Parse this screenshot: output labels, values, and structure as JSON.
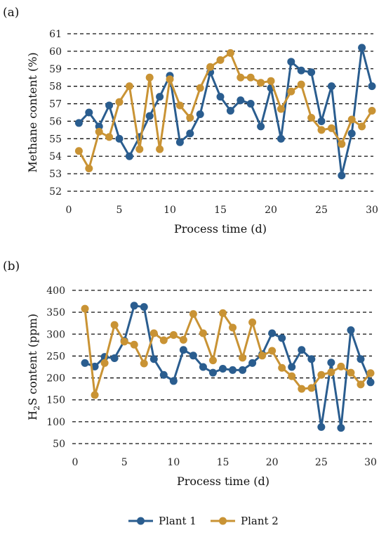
{
  "chart_data": [
    {
      "panel": "(a)",
      "type": "line",
      "xlabel": "Process time (d)",
      "ylabel": "Methane content (%)",
      "xlim": [
        0,
        30
      ],
      "ylim": [
        52,
        61
      ],
      "xticks": [
        0,
        5,
        10,
        15,
        20,
        25,
        30
      ],
      "yticks": [
        52,
        53,
        54,
        55,
        56,
        57,
        58,
        59,
        60,
        61
      ],
      "grid": "horizontal dashed",
      "x": [
        1,
        2,
        3,
        4,
        5,
        6,
        7,
        8,
        9,
        10,
        11,
        12,
        13,
        14,
        15,
        16,
        17,
        18,
        19,
        20,
        21,
        22,
        23,
        24,
        25,
        26,
        27,
        28,
        29,
        30
      ],
      "series": [
        {
          "name": "Plant 1",
          "color": "#2a5d8f",
          "values": [
            55.9,
            56.5,
            55.7,
            56.9,
            55.0,
            54.0,
            55.1,
            56.3,
            57.4,
            58.6,
            54.8,
            55.3,
            56.4,
            58.8,
            57.4,
            56.6,
            57.2,
            57.0,
            55.7,
            57.9,
            55.0,
            59.4,
            58.9,
            58.8,
            56.0,
            58.0,
            52.9,
            55.3,
            60.2,
            58.0
          ]
        },
        {
          "name": "Plant 2",
          "color": "#c99334",
          "values": [
            54.3,
            53.3,
            55.4,
            55.1,
            57.1,
            58.0,
            54.4,
            58.5,
            54.4,
            58.4,
            56.9,
            56.2,
            57.9,
            59.1,
            59.5,
            59.9,
            58.5,
            58.5,
            58.2,
            58.3,
            56.7,
            57.7,
            58.1,
            56.2,
            55.5,
            55.6,
            54.7,
            56.1,
            55.7,
            56.6
          ]
        }
      ]
    },
    {
      "panel": "(b)",
      "type": "line",
      "xlabel": "Process time (d)",
      "ylabel_main": "H",
      "ylabel_sub": "2",
      "ylabel_rest": "S content (ppm)",
      "xlim": [
        0,
        30
      ],
      "ylim": [
        50,
        400
      ],
      "xticks": [
        0,
        5,
        10,
        15,
        20,
        25,
        30
      ],
      "yticks": [
        50,
        100,
        150,
        200,
        250,
        300,
        350,
        400
      ],
      "grid": "horizontal dashed",
      "x": [
        1,
        2,
        3,
        4,
        5,
        6,
        7,
        8,
        9,
        10,
        11,
        12,
        13,
        14,
        15,
        16,
        17,
        18,
        19,
        20,
        21,
        22,
        23,
        24,
        25,
        26,
        27,
        28,
        29,
        30
      ],
      "series": [
        {
          "name": "Plant 1",
          "color": "#2a5d8f",
          "values": [
            234,
            226,
            248,
            245,
            285,
            365,
            362,
            243,
            207,
            193,
            264,
            251,
            225,
            212,
            221,
            218,
            218,
            234,
            254,
            302,
            291,
            225,
            264,
            243,
            88,
            235,
            86,
            309,
            243,
            190
          ]
        },
        {
          "name": "Plant 2",
          "color": "#c99334",
          "values": [
            358,
            161,
            234,
            321,
            283,
            276,
            233,
            302,
            286,
            298,
            287,
            346,
            302,
            240,
            348,
            315,
            246,
            327,
            251,
            262,
            223,
            204,
            175,
            177,
            207,
            213,
            226,
            212,
            185,
            211
          ]
        }
      ]
    }
  ],
  "legend": {
    "placement": "bottom-center",
    "items": [
      {
        "label": "Plant 1",
        "color": "#2a5d8f"
      },
      {
        "label": "Plant 2",
        "color": "#c99334"
      }
    ]
  }
}
